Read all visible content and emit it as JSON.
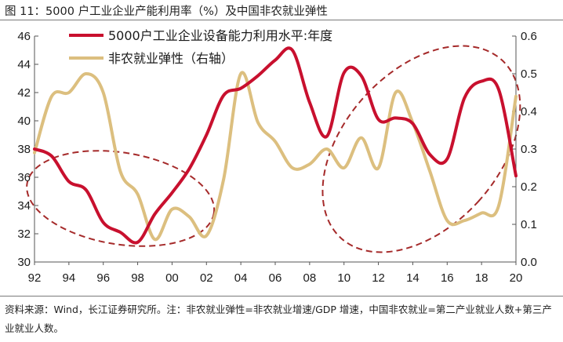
{
  "header": {
    "title": "图 11：5000 户工业企业产能利用率（%）及中国非农就业弹性"
  },
  "source": {
    "text": "资料来源：Wind，长江证券研究所。注：非农就业弹性=非农就业增速/GDP 增速，中国非农就业=第二产业就业人数+第三产业就业人数。"
  },
  "colors": {
    "red": "#c8102e",
    "tan": "#dcbf7f",
    "ellipse": "#a52a2a",
    "axis": "#555555"
  },
  "chart_data": {
    "type": "line",
    "xlabels": [
      "92",
      "94",
      "96",
      "98",
      "00",
      "02",
      "04",
      "06",
      "08",
      "10",
      "12",
      "14",
      "16",
      "18",
      "20"
    ],
    "xlim": [
      1992,
      2020
    ],
    "ylim_left": [
      30,
      46
    ],
    "ylim_right": [
      0.0,
      0.6
    ],
    "yticks_left": [
      "30",
      "32",
      "34",
      "36",
      "38",
      "40",
      "42",
      "44",
      "46"
    ],
    "yticks_right": [
      "0.0",
      "0.1",
      "0.2",
      "0.3",
      "0.4",
      "0.5",
      "0.6"
    ],
    "series": [
      {
        "name": "5000户工业企业设备能力利用水平:年度",
        "axis": "left",
        "color": "#c8102e",
        "x": [
          1992,
          1993,
          1994,
          1995,
          1996,
          1997,
          1998,
          1999,
          2000,
          2001,
          2002,
          2003,
          2004,
          2005,
          2006,
          2007,
          2008,
          2009,
          2010,
          2011,
          2012,
          2013,
          2014,
          2015,
          2016,
          2017,
          2018,
          2019,
          2020
        ],
        "values": [
          38.0,
          37.5,
          35.7,
          35.1,
          32.8,
          32.1,
          31.4,
          33.4,
          34.9,
          36.6,
          39.0,
          41.8,
          42.3,
          43.2,
          44.3,
          45.0,
          41.3,
          38.9,
          43.4,
          43.2,
          40.1,
          40.2,
          39.8,
          37.6,
          37.3,
          41.6,
          42.8,
          42.2,
          36.1
        ]
      },
      {
        "name": "非农就业弹性（右轴）",
        "axis": "right",
        "color": "#dcbf7f",
        "x": [
          1992,
          1993,
          1994,
          1995,
          1996,
          1997,
          1998,
          1999,
          2000,
          2001,
          2002,
          2003,
          2004,
          2005,
          2006,
          2007,
          2008,
          2009,
          2010,
          2011,
          2012,
          2013,
          2014,
          2015,
          2016,
          2017,
          2018,
          2019,
          2020
        ],
        "values": [
          0.29,
          0.44,
          0.45,
          0.5,
          0.45,
          0.24,
          0.18,
          0.06,
          0.14,
          0.12,
          0.07,
          0.22,
          0.5,
          0.37,
          0.32,
          0.25,
          0.26,
          0.3,
          0.25,
          0.33,
          0.25,
          0.45,
          0.37,
          0.24,
          0.11,
          0.11,
          0.13,
          0.15,
          0.44
        ]
      }
    ],
    "annotations": [
      {
        "type": "dashed-ellipse",
        "x_center": 1997,
        "y_center": 34.5,
        "x_span": 11,
        "y_span": 6.5,
        "axis": "left"
      },
      {
        "type": "dashed-ellipse",
        "x_center": 2014.5,
        "y_center": 38.0,
        "x_span": 9,
        "y_span": 17,
        "axis": "left"
      }
    ]
  }
}
